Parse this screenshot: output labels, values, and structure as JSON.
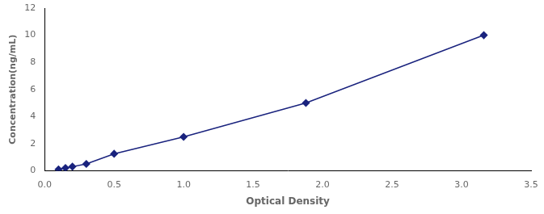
{
  "chart_data": {
    "type": "line",
    "xlabel": "Optical Density",
    "ylabel": "Concentration(ng/mL)",
    "x": [
      0.1,
      0.15,
      0.2,
      0.3,
      0.5,
      1.0,
      1.88,
      3.16
    ],
    "values": [
      0.1,
      0.2,
      0.3,
      0.5,
      1.25,
      2.5,
      5.0,
      10.0
    ],
    "color": "#1a237e",
    "marker": "diamond",
    "line_style": "solid",
    "xlim": [
      0,
      3.5
    ],
    "ylim": [
      0,
      12
    ],
    "xticks": [
      {
        "value": 0,
        "label": "0.0"
      },
      0.5,
      {
        "value": 1,
        "label": "1.0"
      },
      1.5,
      {
        "value": 2,
        "label": "2.0"
      },
      2.5,
      {
        "value": 3,
        "label": "3.0"
      },
      3.5
    ],
    "yticks": [
      0,
      2,
      4,
      6,
      8,
      10,
      12
    ],
    "grid": false
  }
}
